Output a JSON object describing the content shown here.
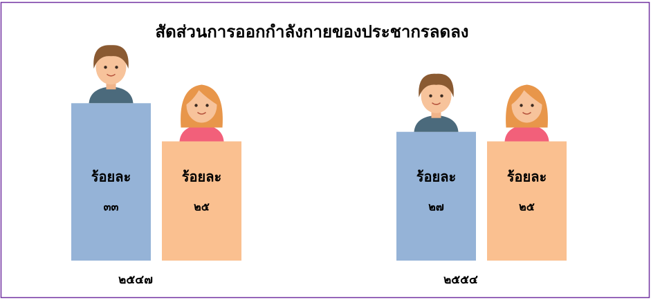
{
  "chart_data": {
    "type": "bar",
    "title": "สัดส่วนการออกกำลังกายของประชากรลดลง",
    "unit_label": "ร้อยละ",
    "categories": [
      "๒๕๔๗",
      "๒๕๕๔"
    ],
    "series": [
      {
        "color": "#95b3d7",
        "values": [
          33,
          27
        ],
        "value_labels": [
          "๓๓",
          "๒๗"
        ]
      },
      {
        "color": "#fac090",
        "values": [
          25,
          25
        ],
        "value_labels": [
          "๒๕",
          "๒๕"
        ]
      }
    ]
  }
}
